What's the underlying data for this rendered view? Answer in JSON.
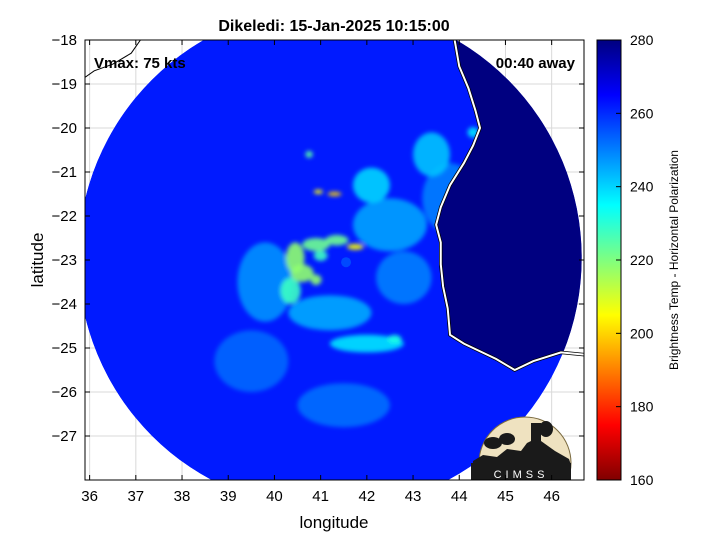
{
  "chart_data": {
    "type": "heatmap",
    "title": "Dikeledi: 15-Jan-2025 10:15:00",
    "annotations": {
      "vmax": "Vmax: 75 kts",
      "away": "00:40 away"
    },
    "xlabel": "longitude",
    "ylabel": "latitude",
    "xlim": [
      35.9,
      46.7
    ],
    "ylim": [
      -28.0,
      -18.0
    ],
    "x_ticks": [
      36,
      37,
      38,
      39,
      40,
      41,
      42,
      43,
      44,
      45,
      46
    ],
    "y_ticks": [
      -18,
      -19,
      -20,
      -21,
      -22,
      -23,
      -24,
      -25,
      -26,
      -27
    ],
    "grid": true,
    "colorbar": {
      "label": "Brightness Temp - Horizontal Polarization",
      "range": [
        160,
        280
      ],
      "ticks": [
        160,
        180,
        200,
        220,
        240,
        260,
        280
      ],
      "colormap": "jet"
    },
    "swath": {
      "center": [
        41.2,
        -22.95
      ],
      "radius_deg": 5.45
    },
    "background_temp": 262,
    "storm_center": [
      41.55,
      -23.05
    ],
    "features": [
      {
        "lon": 41.75,
        "lat": -22.7,
        "temp": 205,
        "sx": 0.18,
        "sy": 0.07
      },
      {
        "lon": 41.35,
        "lat": -22.55,
        "temp": 222,
        "sx": 0.25,
        "sy": 0.12
      },
      {
        "lon": 40.9,
        "lat": -22.65,
        "temp": 222,
        "sx": 0.3,
        "sy": 0.15
      },
      {
        "lon": 40.45,
        "lat": -22.95,
        "temp": 218,
        "sx": 0.2,
        "sy": 0.35
      },
      {
        "lon": 40.6,
        "lat": -23.3,
        "temp": 218,
        "sx": 0.25,
        "sy": 0.2
      },
      {
        "lon": 40.35,
        "lat": -23.7,
        "temp": 228,
        "sx": 0.22,
        "sy": 0.3
      },
      {
        "lon": 40.9,
        "lat": -23.45,
        "temp": 218,
        "sx": 0.12,
        "sy": 0.12
      },
      {
        "lon": 41.0,
        "lat": -22.9,
        "temp": 228,
        "sx": 0.15,
        "sy": 0.12
      },
      {
        "lon": 41.3,
        "lat": -21.5,
        "temp": 200,
        "sx": 0.15,
        "sy": 0.05
      },
      {
        "lon": 40.95,
        "lat": -21.45,
        "temp": 205,
        "sx": 0.1,
        "sy": 0.05
      },
      {
        "lon": 40.75,
        "lat": -20.6,
        "temp": 225,
        "sx": 0.08,
        "sy": 0.08
      },
      {
        "lon": 42.0,
        "lat": -24.9,
        "temp": 238,
        "sx": 0.8,
        "sy": 0.2
      },
      {
        "lon": 42.6,
        "lat": -24.8,
        "temp": 232,
        "sx": 0.15,
        "sy": 0.1
      },
      {
        "lon": 42.1,
        "lat": -21.3,
        "temp": 240,
        "sx": 0.4,
        "sy": 0.4
      },
      {
        "lon": 43.4,
        "lat": -20.6,
        "temp": 242,
        "sx": 0.4,
        "sy": 0.5
      },
      {
        "lon": 44.3,
        "lat": -20.1,
        "temp": 238,
        "sx": 0.12,
        "sy": 0.12
      },
      {
        "lon": 42.5,
        "lat": -22.2,
        "temp": 246,
        "sx": 0.8,
        "sy": 0.6
      },
      {
        "lon": 39.8,
        "lat": -23.5,
        "temp": 248,
        "sx": 0.6,
        "sy": 0.9
      },
      {
        "lon": 41.2,
        "lat": -24.2,
        "temp": 245,
        "sx": 0.9,
        "sy": 0.4
      },
      {
        "lon": 43.8,
        "lat": -21.6,
        "temp": 250,
        "sx": 0.6,
        "sy": 0.8
      },
      {
        "lon": 42.8,
        "lat": -23.4,
        "temp": 250,
        "sx": 0.6,
        "sy": 0.6
      },
      {
        "lon": 39.5,
        "lat": -25.3,
        "temp": 253,
        "sx": 0.8,
        "sy": 0.7
      },
      {
        "lon": 41.5,
        "lat": -26.3,
        "temp": 252,
        "sx": 1.0,
        "sy": 0.5
      }
    ],
    "land_temp": 282,
    "coastline_madagascar": [
      [
        46.7,
        -25.15
      ],
      [
        46.2,
        -25.1
      ],
      [
        45.6,
        -25.3
      ],
      [
        45.2,
        -25.5
      ],
      [
        44.8,
        -25.25
      ],
      [
        44.1,
        -24.9
      ],
      [
        43.8,
        -24.7
      ],
      [
        43.75,
        -24.1
      ],
      [
        43.65,
        -23.6
      ],
      [
        43.6,
        -23.1
      ],
      [
        43.6,
        -22.6
      ],
      [
        43.5,
        -22.2
      ],
      [
        43.6,
        -21.8
      ],
      [
        43.8,
        -21.3
      ],
      [
        44.1,
        -20.8
      ],
      [
        44.3,
        -20.4
      ],
      [
        44.45,
        -20.0
      ],
      [
        44.35,
        -19.6
      ],
      [
        44.2,
        -19.1
      ],
      [
        44.0,
        -18.6
      ],
      [
        43.9,
        -18.0
      ]
    ],
    "coastline_mozambique": [
      [
        35.9,
        -18.85
      ],
      [
        36.1,
        -18.7
      ],
      [
        36.5,
        -18.55
      ],
      [
        36.9,
        -18.3
      ],
      [
        37.1,
        -18.0
      ]
    ],
    "logo_text": "CIMSS"
  }
}
